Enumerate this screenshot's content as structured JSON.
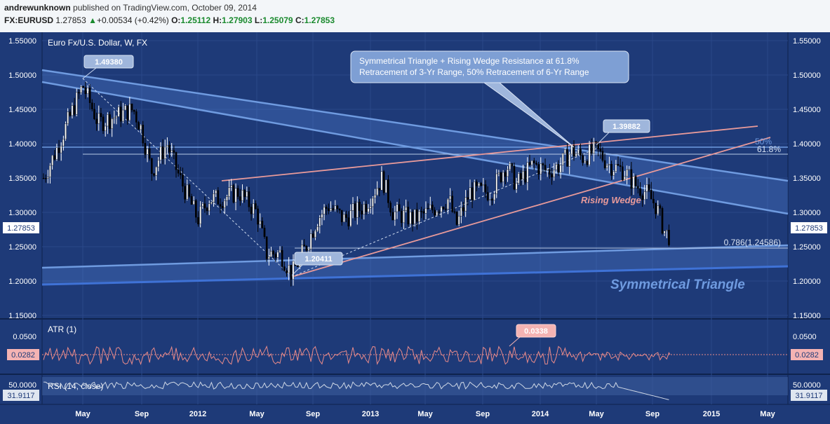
{
  "header": {
    "author": "andrewunknown",
    "published": "published on TradingView.com, October 09, 2014",
    "symbol": "FX:EURUSD",
    "last": "1.27853",
    "change": "+0.00534 (+0.42%)",
    "open_label": "O:",
    "open": "1.25112",
    "high_label": "H:",
    "high": "1.27903",
    "low_label": "L:",
    "low": "1.25079",
    "close_label": "C:",
    "close": "1.27853"
  },
  "chart_data": {
    "type": "candlestick",
    "title": "Euro Fx/U.S. Dollar, W, FX",
    "x_ticks": [
      "May",
      "Sep",
      "2012",
      "May",
      "Sep",
      "2013",
      "May",
      "Sep",
      "2014",
      "May",
      "Sep",
      "2015",
      "May"
    ],
    "y_ticks": [
      "1.55000",
      "1.50000",
      "1.45000",
      "1.40000",
      "1.35000",
      "1.30000",
      "1.25000",
      "1.20000",
      "1.15000"
    ],
    "ylim": [
      1.13,
      1.56
    ],
    "last_price": 1.27853,
    "last_price_label": "1.27853",
    "callouts": [
      {
        "label": "1.49380",
        "value": 1.4938
      },
      {
        "label": "1.20411",
        "value": 1.20411
      },
      {
        "label": "1.39882",
        "value": 1.39882
      }
    ],
    "annotation_lines": [
      "Symmetrical Triangle + Rising Wedge Resistance at 61.8%",
      "Retracement of 3-Yr Range, 50% Retracement of 6-Yr Range"
    ],
    "levels": [
      {
        "label": "50%",
        "value": 1.394
      },
      {
        "label": "61.8%",
        "value": 1.383
      },
      {
        "label": "0.786(1.24586)",
        "value": 1.24586
      }
    ],
    "pattern_labels": [
      "Rising Wedge",
      "Symmetrical Triangle"
    ],
    "colors": {
      "background": "#1e3a78",
      "up": "#ffffff",
      "down": "#000000",
      "triangle": "#6f9be0",
      "wedge": "#e89a9a"
    },
    "indicators": [
      {
        "name": "ATR (1)",
        "ticks": [
          "0.0500"
        ],
        "last": 0.0282,
        "last_label": "0.0282",
        "callout": "0.0338",
        "color": "#e88a8a"
      },
      {
        "name": "RSI (14, close)",
        "ticks": [
          "50.0000"
        ],
        "last": 31.9117,
        "last_label": "31.9117",
        "color": "#cfd8e6"
      }
    ]
  }
}
